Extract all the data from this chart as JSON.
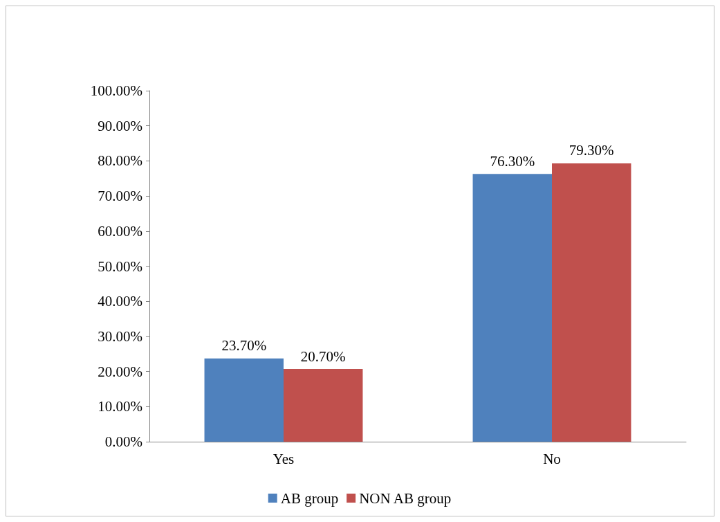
{
  "chart_data": {
    "type": "bar",
    "categories": [
      "Yes",
      "No"
    ],
    "series": [
      {
        "name": "AB group",
        "color": "#4f81bd",
        "values": [
          23.7,
          76.3
        ],
        "value_labels": [
          "23.70%",
          "76.30%"
        ]
      },
      {
        "name": "NON AB group",
        "color": "#c0504d",
        "values": [
          20.7,
          79.3
        ],
        "value_labels": [
          "20.70%",
          "79.30%"
        ]
      }
    ],
    "ylim": [
      0,
      100
    ],
    "yticks": [
      {
        "value": 0,
        "label": "0.00%"
      },
      {
        "value": 10,
        "label": "10.00%"
      },
      {
        "value": 20,
        "label": "20.00%"
      },
      {
        "value": 30,
        "label": "30.00%"
      },
      {
        "value": 40,
        "label": "40.00%"
      },
      {
        "value": 50,
        "label": "50.00%"
      },
      {
        "value": 60,
        "label": "60.00%"
      },
      {
        "value": 70,
        "label": "70.00%"
      },
      {
        "value": 80,
        "label": "80.00%"
      },
      {
        "value": 90,
        "label": "90.00%"
      },
      {
        "value": 100,
        "label": "100.00%"
      }
    ],
    "grid": false,
    "legend": "bottom"
  }
}
